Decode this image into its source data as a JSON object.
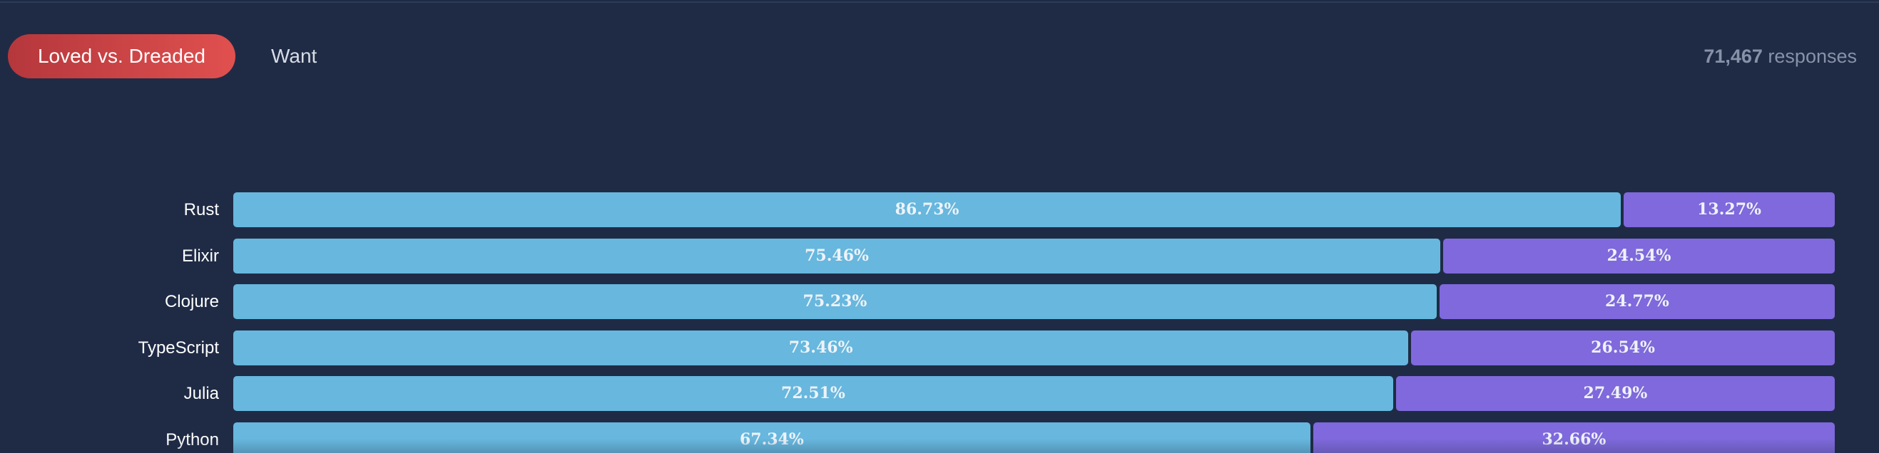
{
  "tabs": {
    "loved_dreaded": "Loved vs. Dreaded",
    "want": "Want"
  },
  "responses": {
    "count": "71,467",
    "label": "responses"
  },
  "colors": {
    "background": "#1f2b45",
    "loved": "#67b7de",
    "dreaded": "#7f69dc",
    "active_tab": "#d9454a"
  },
  "chart_data": {
    "type": "bar",
    "orientation": "horizontal",
    "stacked": true,
    "normalized": true,
    "categories": [
      "Rust",
      "Elixir",
      "Clojure",
      "TypeScript",
      "Julia",
      "Python"
    ],
    "series": [
      {
        "values": [
          86.73,
          75.46,
          75.23,
          73.46,
          72.51,
          67.34
        ],
        "labels": [
          "86.73%",
          "75.46%",
          "75.23%",
          "73.46%",
          "72.51%",
          "67.34%"
        ],
        "color": "#67b7de"
      },
      {
        "values": [
          13.27,
          24.54,
          24.77,
          26.54,
          27.49,
          32.66
        ],
        "labels": [
          "13.27%",
          "24.54%",
          "24.77%",
          "26.54%",
          "27.49%",
          "32.66%"
        ],
        "color": "#7f69dc"
      }
    ],
    "xlim": [
      0,
      100
    ],
    "grid": false
  }
}
